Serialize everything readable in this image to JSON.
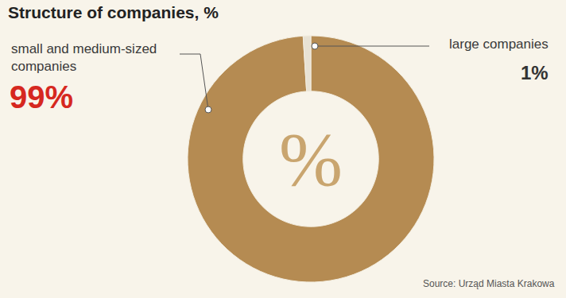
{
  "chart_data": {
    "type": "pie",
    "title": "Structure of companies, %",
    "categories": [
      "small and medium-sized companies",
      "large companies"
    ],
    "values": [
      99,
      1
    ],
    "value_labels": [
      "99%",
      "1%"
    ],
    "colors": [
      "#b58b52",
      "#e8e2d4"
    ],
    "data_labels": true,
    "center_text": "%",
    "source": "Source: Urząd Miasta Krakowa"
  }
}
